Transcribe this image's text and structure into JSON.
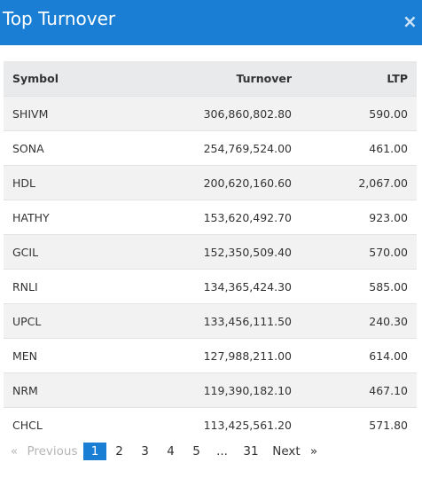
{
  "header": {
    "title": "Top Turnover",
    "close_label": "×"
  },
  "table": {
    "columns": [
      "Symbol",
      "Turnover",
      "LTP"
    ],
    "rows": [
      {
        "symbol": "SHIVM",
        "turnover": "306,860,802.80",
        "ltp": "590.00"
      },
      {
        "symbol": "SONA",
        "turnover": "254,769,524.00",
        "ltp": "461.00"
      },
      {
        "symbol": "HDL",
        "turnover": "200,620,160.60",
        "ltp": "2,067.00"
      },
      {
        "symbol": "HATHY",
        "turnover": "153,620,492.70",
        "ltp": "923.00"
      },
      {
        "symbol": "GCIL",
        "turnover": "152,350,509.40",
        "ltp": "570.00"
      },
      {
        "symbol": "RNLI",
        "turnover": "134,365,424.30",
        "ltp": "585.00"
      },
      {
        "symbol": "UPCL",
        "turnover": "133,456,111.50",
        "ltp": "240.30"
      },
      {
        "symbol": "MEN",
        "turnover": "127,988,211.00",
        "ltp": "614.00"
      },
      {
        "symbol": "NRM",
        "turnover": "119,390,182.10",
        "ltp": "467.10"
      },
      {
        "symbol": "CHCL",
        "turnover": "113,425,561.20",
        "ltp": "571.80"
      }
    ]
  },
  "pagination": {
    "prev_arrow": "«",
    "previous": "Previous",
    "pages": [
      "1",
      "2",
      "3",
      "4",
      "5"
    ],
    "ellipsis": "...",
    "last": "31",
    "next": "Next",
    "next_arrow": "»",
    "active_page": "1"
  },
  "colors": {
    "accent": "#1a7fd4",
    "header_row": "#e8eaec",
    "stripe": "#f2f2f2"
  }
}
